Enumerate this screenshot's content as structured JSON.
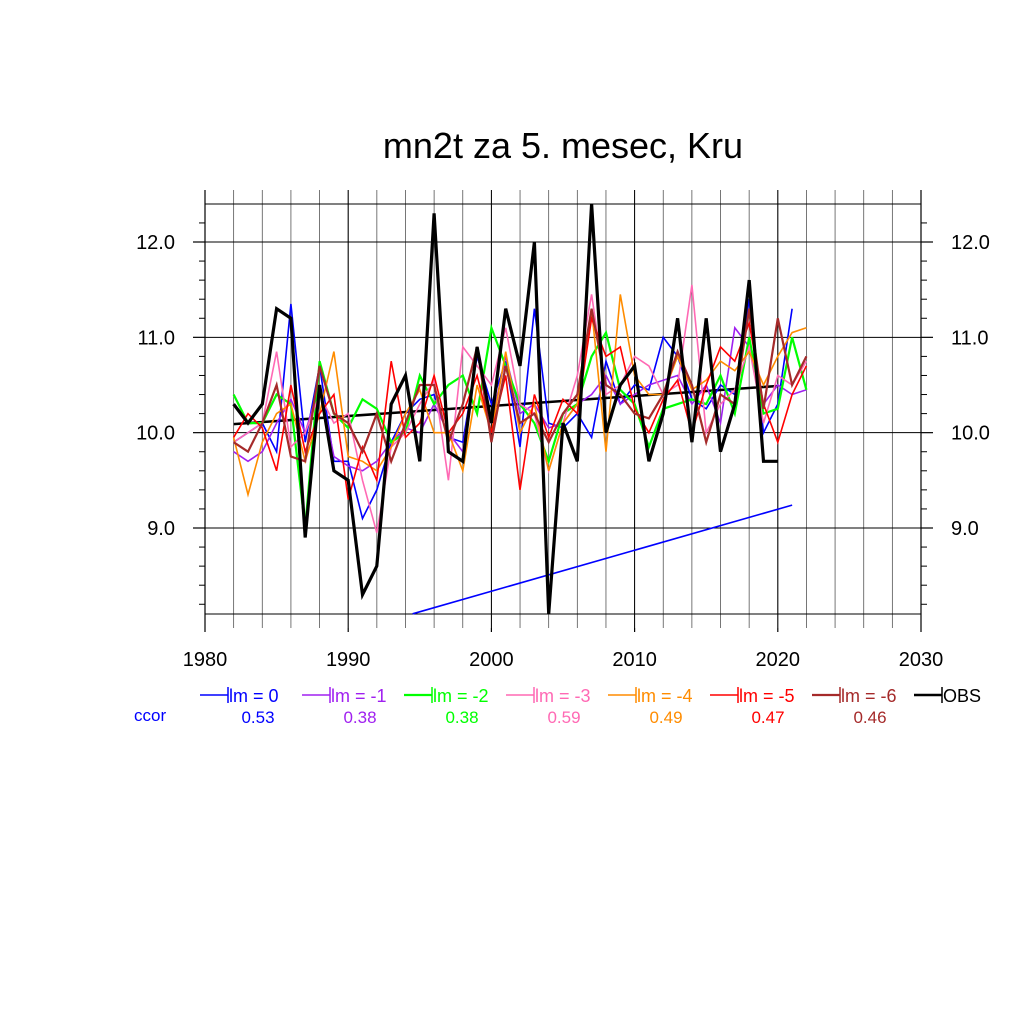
{
  "chart_data": {
    "type": "line",
    "title": "mn2t za 5. mesec, Kru",
    "xlim": [
      1980,
      2030
    ],
    "ylim": [
      8.1,
      12.4
    ],
    "x_ticks": [
      1980,
      1990,
      2000,
      2010,
      2020,
      2030
    ],
    "x_tick_labels": [
      "1980",
      "1990",
      "2000",
      "2010",
      "2020",
      "2030"
    ],
    "y_ticks": [
      9.0,
      10.0,
      11.0,
      12.0
    ],
    "y_tick_labels": [
      "9.0",
      "10.0",
      "11.0",
      "12.0"
    ],
    "grid": true,
    "legend_position": "bottom",
    "ccor_label": "ccor",
    "x": [
      1982,
      1983,
      1984,
      1985,
      1986,
      1987,
      1988,
      1989,
      1990,
      1991,
      1992,
      1993,
      1994,
      1995,
      1996,
      1997,
      1998,
      1999,
      2000,
      2001,
      2002,
      2003,
      2004,
      2005,
      2006,
      2007,
      2008,
      2009,
      2010,
      2011,
      2012,
      2013,
      2014,
      2015,
      2016,
      2017,
      2018,
      2019,
      2020,
      2021,
      2022
    ],
    "series": [
      {
        "name": "lm = 0",
        "color": "#0000ff",
        "width": 1.6,
        "ccor": "0.53",
        "values": [
          9.9,
          10.0,
          10.1,
          9.8,
          11.35,
          9.9,
          10.7,
          9.7,
          9.7,
          9.1,
          9.4,
          9.9,
          10.2,
          10.35,
          10.4,
          9.95,
          9.9,
          10.8,
          10.3,
          10.75,
          9.85,
          11.3,
          10.1,
          10.05,
          10.2,
          9.95,
          10.75,
          10.3,
          10.5,
          10.45,
          11.0,
          10.8,
          10.35,
          10.25,
          10.5,
          10.4,
          11.4,
          10.0,
          10.3,
          11.3,
          null
        ]
      },
      {
        "name": "lm = -1",
        "color": "#a020f0",
        "width": 1.6,
        "ccor": "0.38",
        "values": [
          9.8,
          9.7,
          9.8,
          10.1,
          10.35,
          10.0,
          10.5,
          9.75,
          9.65,
          9.6,
          9.7,
          9.9,
          10.05,
          10.0,
          10.3,
          10.0,
          9.8,
          10.9,
          10.1,
          10.8,
          10.2,
          10.3,
          10.05,
          10.1,
          10.3,
          10.4,
          10.6,
          10.3,
          10.4,
          10.5,
          10.55,
          10.6,
          10.3,
          10.5,
          10.1,
          11.1,
          10.9,
          10.3,
          10.5,
          10.4,
          10.45
        ]
      },
      {
        "name": "lm = -2",
        "color": "#00ff00",
        "width": 2.2,
        "ccor": "0.38",
        "values": [
          10.4,
          10.1,
          10.1,
          10.4,
          10.3,
          9.0,
          10.75,
          10.2,
          10.05,
          10.35,
          10.25,
          9.9,
          10.0,
          10.6,
          10.3,
          10.5,
          10.6,
          10.2,
          11.1,
          10.7,
          10.3,
          10.1,
          9.7,
          10.2,
          10.3,
          10.8,
          11.05,
          10.45,
          10.3,
          9.85,
          10.25,
          10.3,
          10.35,
          10.3,
          10.6,
          10.2,
          11.0,
          10.2,
          10.25,
          11.0,
          10.45
        ]
      },
      {
        "name": "lm = -3",
        "color": "#ff69b4",
        "width": 1.6,
        "ccor": "0.59",
        "values": [
          9.9,
          10.0,
          10.1,
          10.85,
          9.85,
          10.0,
          10.4,
          10.1,
          10.2,
          9.5,
          8.95,
          9.85,
          10.0,
          10.3,
          10.55,
          9.5,
          10.9,
          10.7,
          10.5,
          11.1,
          10.3,
          10.2,
          9.6,
          10.1,
          10.6,
          11.45,
          10.4,
          10.5,
          10.8,
          10.7,
          10.4,
          10.5,
          11.55,
          10.0,
          10.3,
          10.45,
          10.9,
          10.1,
          10.6,
          10.5,
          10.75
        ]
      },
      {
        "name": "lm = -4",
        "color": "#ff8c00",
        "width": 1.6,
        "ccor": "0.49",
        "values": [
          9.95,
          9.35,
          9.9,
          10.2,
          10.3,
          9.7,
          10.2,
          10.85,
          9.75,
          9.7,
          9.6,
          9.85,
          10.2,
          10.45,
          10.0,
          10.0,
          9.6,
          10.5,
          10.0,
          10.85,
          10.0,
          10.3,
          9.6,
          10.1,
          10.3,
          11.3,
          9.8,
          11.45,
          10.6,
          10.4,
          10.4,
          10.8,
          10.45,
          10.55,
          10.75,
          10.65,
          10.85,
          10.5,
          10.8,
          11.05,
          11.1
        ]
      },
      {
        "name": "lm = -5",
        "color": "#ff0000",
        "width": 1.6,
        "ccor": "0.47",
        "values": [
          9.95,
          10.2,
          10.05,
          9.6,
          10.5,
          9.8,
          10.2,
          10.4,
          9.3,
          9.85,
          9.5,
          10.75,
          9.95,
          10.1,
          10.6,
          10.0,
          10.2,
          10.6,
          10.0,
          10.6,
          9.4,
          10.4,
          9.95,
          10.35,
          10.2,
          11.2,
          10.8,
          10.9,
          10.25,
          10.0,
          10.35,
          10.55,
          10.0,
          10.5,
          10.9,
          10.75,
          11.15,
          10.3,
          9.9,
          10.4,
          10.7
        ]
      },
      {
        "name": "lm = -6",
        "color": "#a52a2a",
        "width": 2.2,
        "ccor": "0.46",
        "values": [
          9.9,
          9.8,
          10.1,
          10.5,
          9.75,
          9.7,
          10.7,
          10.2,
          10.1,
          9.8,
          10.2,
          9.7,
          10.1,
          10.5,
          10.5,
          9.9,
          10.3,
          10.9,
          9.9,
          10.7,
          10.1,
          10.2,
          9.9,
          10.2,
          10.4,
          11.3,
          10.5,
          10.4,
          10.2,
          10.15,
          10.4,
          10.85,
          10.5,
          9.9,
          10.4,
          10.3,
          11.3,
          10.25,
          11.2,
          10.5,
          10.8
        ]
      },
      {
        "name": "OBS",
        "color": "#000000",
        "width": 3.2,
        "ccor": "",
        "values": [
          10.3,
          10.1,
          10.3,
          11.3,
          11.2,
          8.9,
          10.5,
          9.6,
          9.5,
          8.3,
          8.6,
          10.3,
          10.6,
          9.7,
          12.3,
          9.8,
          9.7,
          10.9,
          10.1,
          11.3,
          10.7,
          12.0,
          8.1,
          10.1,
          9.7,
          12.4,
          10.0,
          10.5,
          10.7,
          9.7,
          10.2,
          11.2,
          9.9,
          11.2,
          9.8,
          10.3,
          11.6,
          9.7,
          9.7,
          null,
          null
        ]
      }
    ],
    "trend_lines": [
      {
        "name": "OBS trend",
        "color": "#000000",
        "width": 2.5,
        "x": [
          1982,
          2020
        ],
        "y": [
          10.09,
          10.49
        ]
      },
      {
        "name": "blue trend",
        "color": "#0000ff",
        "width": 1.6,
        "x": [
          1994.5,
          2021
        ],
        "y": [
          8.1,
          9.24
        ]
      }
    ]
  }
}
